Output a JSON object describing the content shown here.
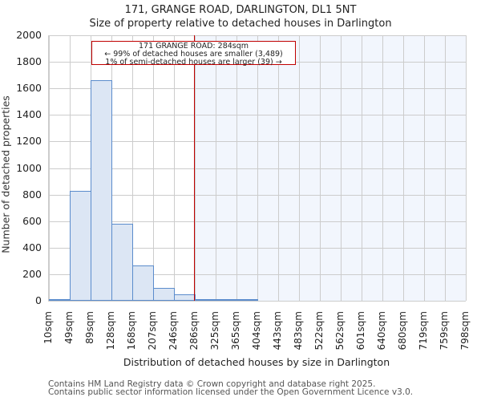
{
  "header": {
    "title": "171, GRANGE ROAD, DARLINGTON, DL1 5NT",
    "subtitle": "Size of property relative to detached houses in Darlington"
  },
  "annotation": {
    "line1": "171 GRANGE ROAD: 284sqm",
    "line2": "← 99% of detached houses are smaller (3,489)",
    "line3": "1% of semi-detached houses are larger (39) →"
  },
  "axes": {
    "ylabel": "Number of detached properties",
    "xlabel": "Distribution of detached houses by size in Darlington",
    "yticks": [
      "0",
      "200",
      "400",
      "600",
      "800",
      "1000",
      "1200",
      "1400",
      "1600",
      "1800",
      "2000"
    ]
  },
  "footer": {
    "line1": "Contains HM Land Registry data © Crown copyright and database right 2025.",
    "line2": "Contains public sector information licensed under the Open Government Licence v3.0."
  },
  "colors": {
    "bar_fill": "#dce6f4",
    "bar_edge": "#5b8ccc",
    "marker": "#c00000",
    "shade": "#f2f6fd"
  },
  "chart_data": {
    "type": "bar",
    "title": "171, GRANGE ROAD, DARLINGTON, DL1 5NT",
    "subtitle": "Size of property relative to detached houses in Darlington",
    "xlabel": "Distribution of detached houses by size in Darlington",
    "ylabel": "Number of detached properties",
    "categories": [
      "10sqm",
      "49sqm",
      "89sqm",
      "128sqm",
      "168sqm",
      "207sqm",
      "246sqm",
      "286sqm",
      "325sqm",
      "365sqm",
      "404sqm",
      "443sqm",
      "483sqm",
      "522sqm",
      "562sqm",
      "601sqm",
      "640sqm",
      "680sqm",
      "719sqm",
      "759sqm",
      "798sqm"
    ],
    "values": [
      10,
      830,
      1660,
      580,
      265,
      97,
      50,
      10,
      10,
      5,
      0,
      0,
      0,
      0,
      0,
      0,
      0,
      0,
      0,
      0
    ],
    "ylim": [
      0,
      2000
    ],
    "grid": true,
    "marker_value": "284sqm",
    "annotation": [
      "171 GRANGE ROAD: 284sqm",
      "← 99% of detached houses are smaller (3,489)",
      "1% of semi-detached houses are larger (39) →"
    ]
  }
}
